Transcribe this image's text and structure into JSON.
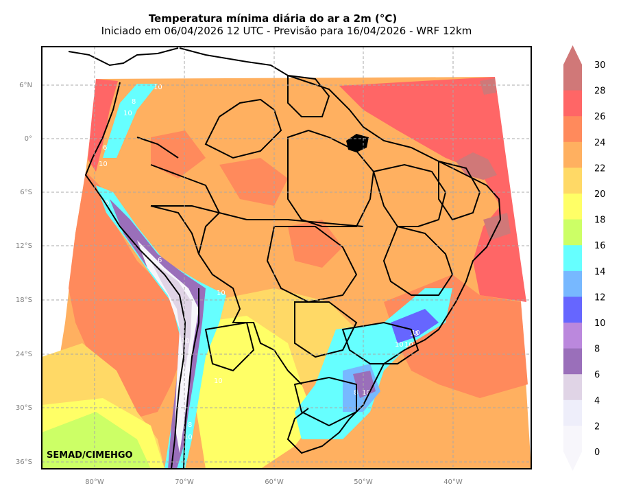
{
  "title": "Temperatura mínima diária do ar a 2m (°C)",
  "subtitle": "Iniciado em 06/04/2026 12 UTC - Previsão para 16/04/2026 - WRF 12km",
  "credit": "SEMAD/CIMEHGO",
  "map": {
    "lat_ticks": [
      "6°N",
      "0°",
      "6°S",
      "12°S",
      "18°S",
      "24°S",
      "30°S",
      "36°S"
    ],
    "lon_ticks": [
      "80°W",
      "70°W",
      "60°W",
      "50°W",
      "40°W"
    ],
    "gridlines": true,
    "contour_labels": [
      "10",
      "8",
      "10",
      "6",
      "10",
      "6",
      "10",
      "10",
      "10",
      "10",
      "10",
      "10",
      "8",
      "10",
      "8",
      "10",
      "6",
      "8",
      "10"
    ]
  },
  "colorbar": {
    "levels": [
      {
        "label": "30",
        "color": "#d07878"
      },
      {
        "label": "28",
        "color": "#ff6666"
      },
      {
        "label": "26",
        "color": "#ff8a5c"
      },
      {
        "label": "24",
        "color": "#ffb060"
      },
      {
        "label": "22",
        "color": "#ffd966"
      },
      {
        "label": "20",
        "color": "#ffff66"
      },
      {
        "label": "18",
        "color": "#ccff66"
      },
      {
        "label": "16",
        "color": "#66ffff"
      },
      {
        "label": "14",
        "color": "#77b8ff"
      },
      {
        "label": "12",
        "color": "#6666ff"
      },
      {
        "label": "10",
        "color": "#bb88dd"
      },
      {
        "label": "8",
        "color": "#9a6fba"
      },
      {
        "label": "6",
        "color": "#e0d4e6"
      },
      {
        "label": "4",
        "color": "#eeeefa"
      },
      {
        "label": "2",
        "color": "#f7f6fb"
      },
      {
        "label": "0",
        "color": "#f7f6fb"
      }
    ]
  }
}
